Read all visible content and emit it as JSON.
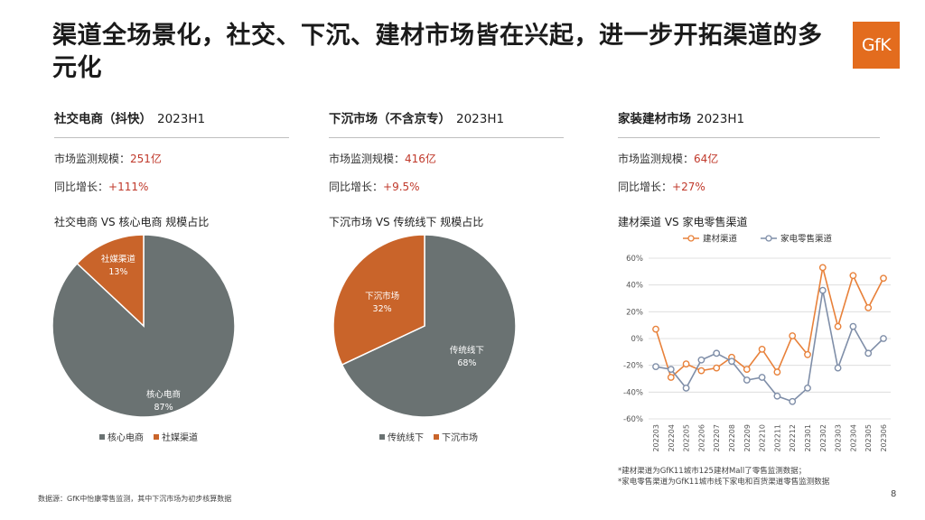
{
  "title": "渠道全场景化，社交、下沉、建材市场皆在兴起，进一步开拓渠道的多元化",
  "logo": "GfK",
  "page_number": "8",
  "footnote_left": "数据源：GfK中怡康零售监测，其中下沉市场为初步核算数据",
  "footnotes_right": [
    "*建材渠道为GfK11城市125建材Mall了零售监测数据；",
    "*家电零售渠道为GfK11城市线下家电和百货渠道零售监测数据"
  ],
  "colors": {
    "accent": "#e36c1e",
    "orange": "#c9642a",
    "gray": "#6a7272",
    "blue_gray": "#7f8ea8",
    "red_value": "#c0392b"
  },
  "panels": [
    {
      "heading": "社交电商（抖快）",
      "period": "2023H1",
      "stat1_label": "市场监测规模：",
      "stat1_value": "251亿",
      "stat2_label": "同比增长：",
      "stat2_value": "+111%",
      "chart_title": "社交电商 VS 核心电商 规模占比"
    },
    {
      "heading": "下沉市场（不含京专）",
      "period": "2023H1",
      "stat1_label": "市场监测规模：",
      "stat1_value": "416亿",
      "stat2_label": "同比增长：",
      "stat2_value": "+9.5%",
      "chart_title": "下沉市场 VS 传统线下 规模占比"
    },
    {
      "heading": "家装建材市场",
      "period": "2023H1",
      "stat1_label": "市场监测规模：",
      "stat1_value": "64亿",
      "stat2_label": "同比增长：",
      "stat2_value": "+27%",
      "chart_title": "建材渠道 VS 家电零售渠道"
    }
  ],
  "chart_data": [
    {
      "type": "pie",
      "slices": [
        {
          "label": "核心电商",
          "value": 87,
          "value_label": "87%",
          "color": "#6a7272"
        },
        {
          "label": "社媒渠道",
          "value": 13,
          "value_label": "13%",
          "color": "#c9642a"
        }
      ],
      "legend": "bottom"
    },
    {
      "type": "pie",
      "slices": [
        {
          "label": "传统线下",
          "value": 68,
          "value_label": "68%",
          "color": "#6a7272"
        },
        {
          "label": "下沉市场",
          "value": 32,
          "value_label": "32%",
          "color": "#c9642a"
        }
      ],
      "legend": "bottom"
    },
    {
      "type": "line",
      "categories": [
        "202203",
        "202204",
        "202205",
        "202206",
        "202207",
        "202208",
        "202209",
        "202210",
        "202211",
        "202212",
        "202301",
        "202302",
        "202303",
        "202304",
        "202305",
        "202306"
      ],
      "series": [
        {
          "name": "建材渠道",
          "color": "#e8813a",
          "values": [
            7,
            -29,
            -19,
            -24,
            -22,
            -14,
            -23,
            -8,
            -25,
            2,
            -12,
            53,
            9,
            47,
            23,
            45
          ]
        },
        {
          "name": "家电零售渠道",
          "color": "#7f8ea8",
          "values": [
            -21,
            -23,
            -37,
            -16,
            -11,
            -17,
            -31,
            -29,
            -43,
            -47,
            -37,
            36,
            -22,
            9,
            -11,
            0
          ]
        }
      ],
      "ylim": [
        -60,
        60
      ],
      "yticks": [
        "-60%",
        "-40%",
        "-20%",
        "0%",
        "20%",
        "40%",
        "60%"
      ],
      "grid": true,
      "legend": "top"
    }
  ]
}
